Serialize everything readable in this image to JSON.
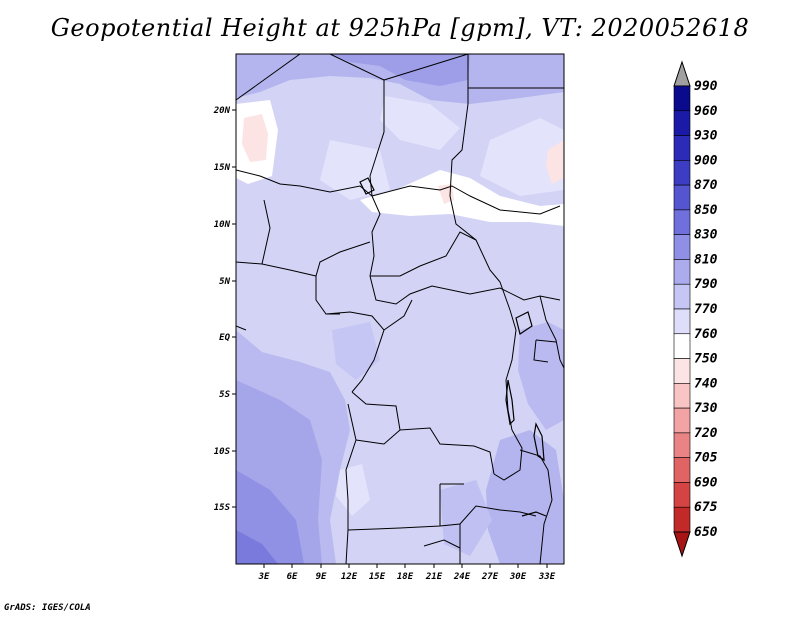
{
  "title": "Geopotential Height at 925hPa [gpm], VT: 2020052618",
  "footer": "GrADS: IGES/COLA",
  "map": {
    "lat_labels": [
      "20N",
      "15N",
      "10N",
      "5N",
      "EQ",
      "5S",
      "10S",
      "15S"
    ],
    "lon_labels": [
      "3E",
      "6E",
      "9E",
      "12E",
      "15E",
      "18E",
      "21E",
      "24E",
      "27E",
      "30E",
      "33E"
    ]
  },
  "colorbar": {
    "levels": [
      {
        "label": "990",
        "color": "#0a0a8c"
      },
      {
        "label": "960",
        "color": "#1a1aa6"
      },
      {
        "label": "930",
        "color": "#2b2bb8"
      },
      {
        "label": "900",
        "color": "#3d3dc4"
      },
      {
        "label": "870",
        "color": "#5555d0"
      },
      {
        "label": "850",
        "color": "#7070dc"
      },
      {
        "label": "830",
        "color": "#8f8fe6"
      },
      {
        "label": "810",
        "color": "#ababee"
      },
      {
        "label": "790",
        "color": "#c6c6f4"
      },
      {
        "label": "770",
        "color": "#dedefa"
      },
      {
        "label": "760",
        "color": "#ffffff"
      },
      {
        "label": "750",
        "color": "#fde4e4"
      },
      {
        "label": "740",
        "color": "#f8c4c4"
      },
      {
        "label": "730",
        "color": "#f2a4a4"
      },
      {
        "label": "720",
        "color": "#ea8484"
      },
      {
        "label": "705",
        "color": "#e06464"
      },
      {
        "label": "690",
        "color": "#d44444"
      },
      {
        "label": "675",
        "color": "#c22a2a"
      },
      {
        "label": "650",
        "color": "#a81414"
      }
    ],
    "top_arrow_color": "#a0a0a0",
    "bottom_arrow_color": "#a81414"
  }
}
